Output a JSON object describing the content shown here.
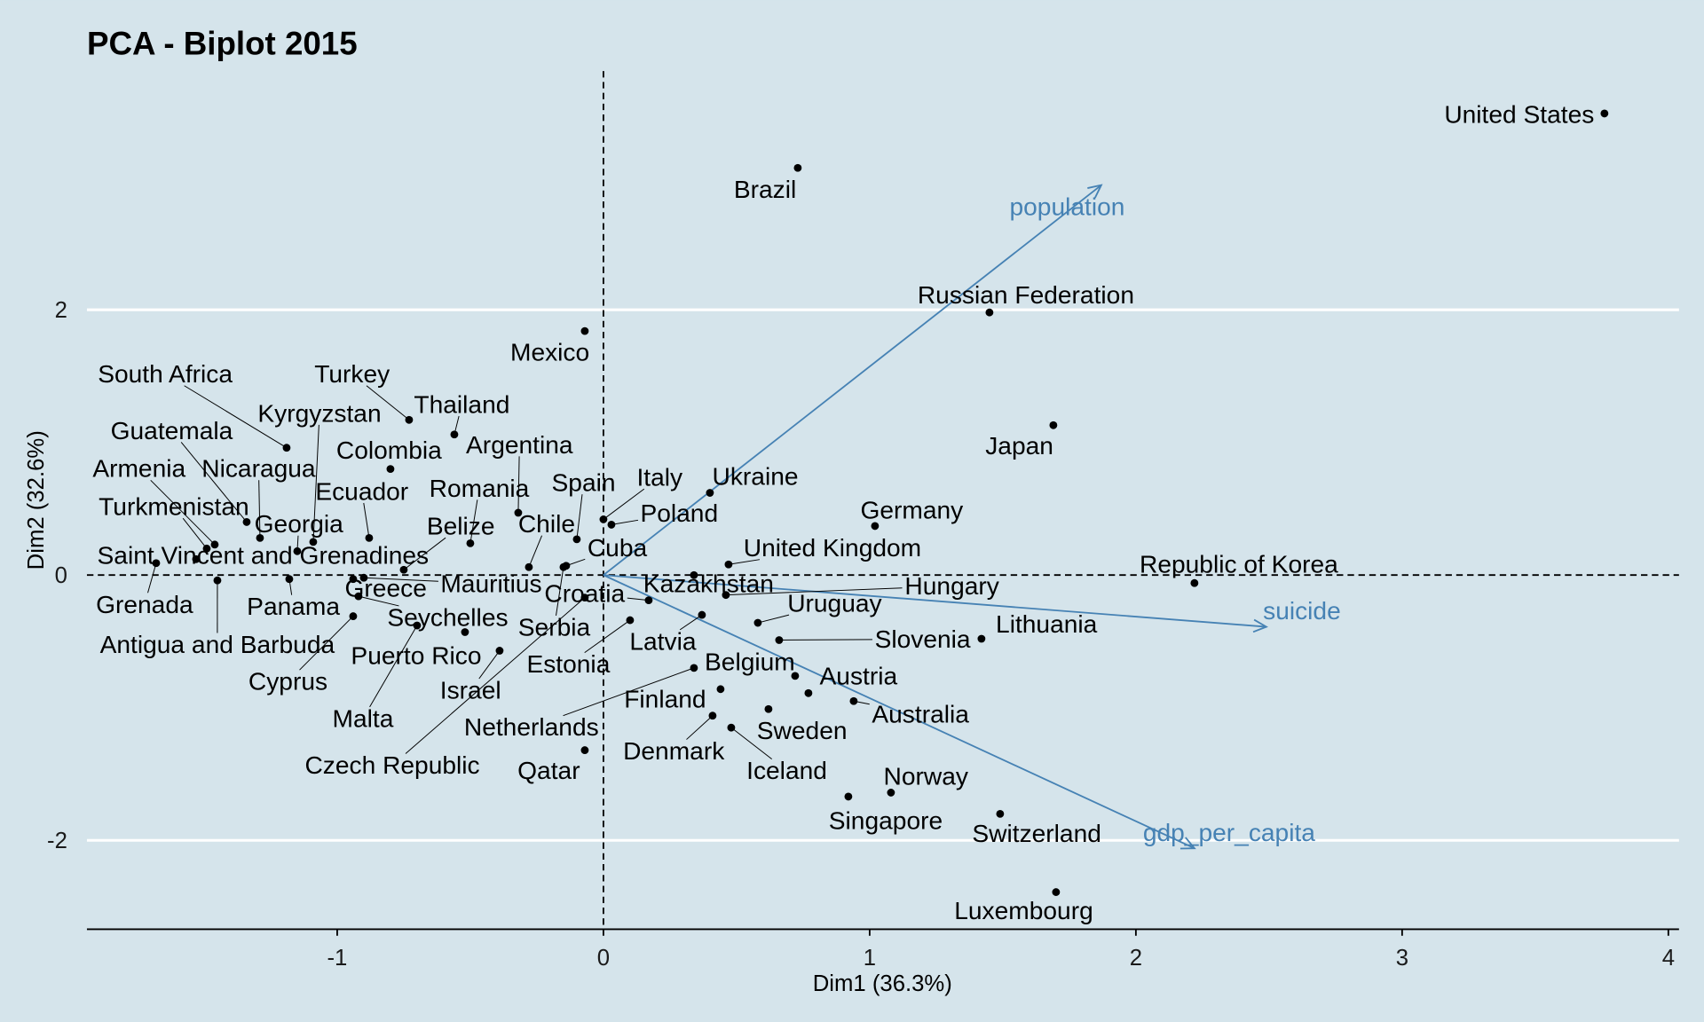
{
  "chart_data": {
    "type": "scatter",
    "title": "PCA - Biplot 2015",
    "xlabel": "Dim1 (36.3%)",
    "ylabel": "Dim2 (32.6%)",
    "xlim": [
      -1.94,
      4.04
    ],
    "ylim": [
      -2.67,
      3.8
    ],
    "x_ticks": [
      -1,
      0,
      1,
      2,
      3,
      4
    ],
    "y_ticks": [
      -2,
      0,
      2
    ],
    "grid": "horizontal major lines only",
    "reference_lines": "dashed at x=0 and y=0",
    "colors": {
      "background": "#d5e4eb",
      "points": "#000000",
      "vectors": "#4682b4",
      "grid": "#ffffff"
    },
    "points": [
      {
        "name": "United States",
        "x": 3.76,
        "y": 3.48
      },
      {
        "name": "Brazil",
        "x": 0.73,
        "y": 3.07
      },
      {
        "name": "Russian Federation",
        "x": 1.45,
        "y": 1.98
      },
      {
        "name": "Mexico",
        "x": -0.07,
        "y": 1.84
      },
      {
        "name": "Japan",
        "x": 1.69,
        "y": 1.13
      },
      {
        "name": "South Africa",
        "x": -1.19,
        "y": 0.96
      },
      {
        "name": "Turkey",
        "x": -0.73,
        "y": 1.17
      },
      {
        "name": "Thailand",
        "x": -0.56,
        "y": 1.06
      },
      {
        "name": "Kyrgyzstan",
        "x": -1.09,
        "y": 0.25
      },
      {
        "name": "Guatemala",
        "x": -1.34,
        "y": 0.4
      },
      {
        "name": "Colombia",
        "x": -0.8,
        "y": 0.8
      },
      {
        "name": "Argentina",
        "x": -0.32,
        "y": 0.47
      },
      {
        "name": "Armenia",
        "x": -1.46,
        "y": 0.23
      },
      {
        "name": "Nicaragua",
        "x": -1.29,
        "y": 0.28
      },
      {
        "name": "Ecuador",
        "x": -0.88,
        "y": 0.28
      },
      {
        "name": "Romania",
        "x": -0.5,
        "y": 0.24
      },
      {
        "name": "Spain",
        "x": -0.1,
        "y": 0.27
      },
      {
        "name": "Italy",
        "x": 0.0,
        "y": 0.42
      },
      {
        "name": "Ukraine",
        "x": 0.4,
        "y": 0.62
      },
      {
        "name": "Turkmenistan",
        "x": -1.49,
        "y": 0.2
      },
      {
        "name": "Georgia",
        "x": -1.15,
        "y": 0.18
      },
      {
        "name": "Belize",
        "x": -0.75,
        "y": 0.04
      },
      {
        "name": "Chile",
        "x": -0.28,
        "y": 0.06
      },
      {
        "name": "Poland",
        "x": 0.03,
        "y": 0.38
      },
      {
        "name": "Germany",
        "x": 1.02,
        "y": 0.37
      },
      {
        "name": "Cuba",
        "x": -0.14,
        "y": 0.07
      },
      {
        "name": "United Kingdom",
        "x": 0.47,
        "y": 0.08
      },
      {
        "name": "Saint Vincent and Grenadines",
        "x": -1.53,
        "y": 0.12
      },
      {
        "name": "Greece",
        "x": -0.94,
        "y": -0.03
      },
      {
        "name": "Mauritius",
        "x": -0.9,
        "y": -0.02
      },
      {
        "name": "Croatia",
        "x": 0.17,
        "y": -0.19
      },
      {
        "name": "Kazakhstan",
        "x": 0.34,
        "y": 0.0
      },
      {
        "name": "Hungary",
        "x": 0.46,
        "y": -0.15
      },
      {
        "name": "Grenada",
        "x": -1.68,
        "y": 0.09
      },
      {
        "name": "Panama",
        "x": -1.18,
        "y": -0.03
      },
      {
        "name": "Seychelles",
        "x": -0.92,
        "y": -0.16
      },
      {
        "name": "Uruguay",
        "x": 0.58,
        "y": -0.36
      },
      {
        "name": "Republic of Korea",
        "x": 2.22,
        "y": -0.06
      },
      {
        "name": "Serbia",
        "x": -0.15,
        "y": 0.06
      },
      {
        "name": "Lithuania",
        "x": 1.42,
        "y": -0.48
      },
      {
        "name": "Antigua and Barbuda",
        "x": -1.45,
        "y": -0.04
      },
      {
        "name": "Slovenia",
        "x": 0.66,
        "y": -0.49
      },
      {
        "name": "Latvia",
        "x": 0.37,
        "y": -0.3
      },
      {
        "name": "Puerto Rico",
        "x": -0.52,
        "y": -0.43
      },
      {
        "name": "Estonia",
        "x": 0.1,
        "y": -0.34
      },
      {
        "name": "Belgium",
        "x": 0.72,
        "y": -0.76
      },
      {
        "name": "Austria",
        "x": 0.77,
        "y": -0.89
      },
      {
        "name": "Cyprus",
        "x": -0.94,
        "y": -0.31
      },
      {
        "name": "Israel",
        "x": -0.39,
        "y": -0.57
      },
      {
        "name": "Finland",
        "x": 0.44,
        "y": -0.86
      },
      {
        "name": "Malta",
        "x": -0.7,
        "y": -0.38
      },
      {
        "name": "Australia",
        "x": 0.94,
        "y": -0.95
      },
      {
        "name": "Netherlands",
        "x": 0.34,
        "y": -0.7
      },
      {
        "name": "Sweden",
        "x": 0.62,
        "y": -1.01
      },
      {
        "name": "Denmark",
        "x": 0.41,
        "y": -1.06
      },
      {
        "name": "Czech Republic",
        "x": -0.07,
        "y": -0.17
      },
      {
        "name": "Qatar",
        "x": -0.07,
        "y": -1.32
      },
      {
        "name": "Iceland",
        "x": 0.48,
        "y": -1.15
      },
      {
        "name": "Norway",
        "x": 1.08,
        "y": -1.64
      },
      {
        "name": "Singapore",
        "x": 0.92,
        "y": -1.67
      },
      {
        "name": "Switzerland",
        "x": 1.49,
        "y": -1.8
      },
      {
        "name": "Luxembourg",
        "x": 1.7,
        "y": -2.39
      }
    ],
    "vectors": [
      {
        "name": "population",
        "x": 1.87,
        "y": 2.94
      },
      {
        "name": "suicide",
        "x": 2.49,
        "y": -0.39
      },
      {
        "name": "gdp_per_capita",
        "x": 2.22,
        "y": -2.06
      }
    ]
  }
}
